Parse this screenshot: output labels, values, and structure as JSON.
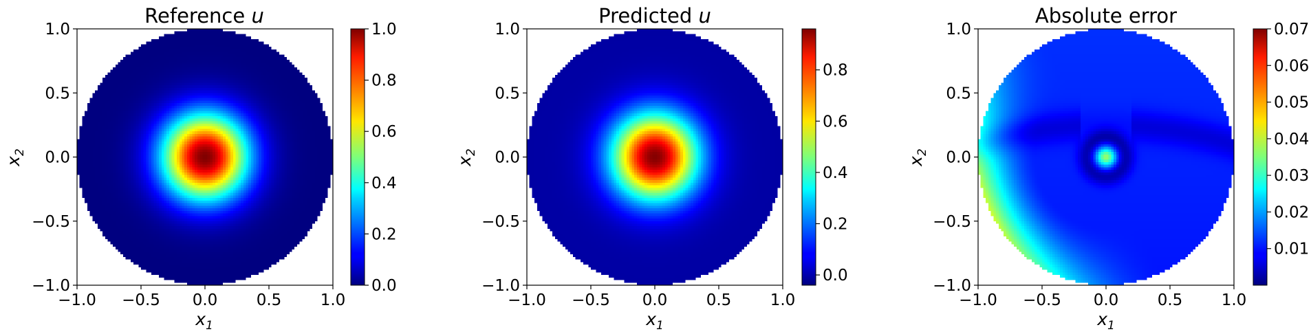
{
  "chart_data": [
    {
      "type": "heatmap",
      "title": "Reference u",
      "title_prefix": "Reference ",
      "title_var": "u",
      "xlabel": "x₁",
      "ylabel": "x₂",
      "xlim": [
        -1.0,
        1.0
      ],
      "ylim": [
        -1.0,
        1.0
      ],
      "x_ticks": [
        "−1.0",
        "−0.5",
        "0.0",
        "0.5",
        "1.0"
      ],
      "y_ticks": [
        "−1.0",
        "−0.5",
        "0.0",
        "0.5",
        "1.0"
      ],
      "domain": "unit disk",
      "field": "gaussian bump centered at (0,0), peak 1.0 at center decaying to ~0 at radius 1",
      "colormap": "jet",
      "colorbar": {
        "min": 0.0,
        "max": 1.0,
        "ticks": [
          0.0,
          0.2,
          0.4,
          0.6,
          0.8,
          1.0
        ],
        "tick_labels": [
          "0.0",
          "0.2",
          "0.4",
          "0.6",
          "0.8",
          "1.0"
        ]
      }
    },
    {
      "type": "heatmap",
      "title": "Predicted u",
      "title_prefix": "Predicted ",
      "title_var": "u",
      "xlabel": "x₁",
      "ylabel": "x₂",
      "xlim": [
        -1.0,
        1.0
      ],
      "ylim": [
        -1.0,
        1.0
      ],
      "x_ticks": [
        "−1.0",
        "−0.5",
        "0.0",
        "0.5",
        "1.0"
      ],
      "y_ticks": [
        "−1.0",
        "−0.5",
        "0.0",
        "0.5",
        "1.0"
      ],
      "domain": "unit disk",
      "field": "gaussian bump centered at (0,0), peak ~0.95 at center decaying to ~0 at radius 1",
      "colormap": "jet",
      "colorbar": {
        "min": -0.04,
        "max": 0.96,
        "ticks": [
          0.0,
          0.2,
          0.4,
          0.6,
          0.8
        ],
        "tick_labels": [
          "0.0",
          "0.2",
          "0.4",
          "0.6",
          "0.8"
        ]
      }
    },
    {
      "type": "heatmap",
      "title": "Absolute error",
      "title_prefix": "Absolute error",
      "title_var": "",
      "xlabel": "x₁",
      "ylabel": "x₂",
      "xlim": [
        -1.0,
        1.0
      ],
      "ylim": [
        -1.0,
        1.0
      ],
      "x_ticks": [
        "−1.0",
        "−0.5",
        "0.0",
        "0.5",
        "1.0"
      ],
      "y_ticks": [
        "−1.0",
        "−0.5",
        "0.0",
        "0.5",
        "1.0"
      ],
      "domain": "unit disk",
      "field": "error ~0.01 background, peak ~0.035 spot at center with dark ring, up to ~0.04 near left-bottom boundary",
      "colormap": "jet",
      "colorbar": {
        "min": 0.0,
        "max": 0.07,
        "ticks": [
          0.01,
          0.02,
          0.03,
          0.04,
          0.05,
          0.06,
          0.07
        ],
        "tick_labels": [
          "0.01",
          "0.02",
          "0.03",
          "0.04",
          "0.05",
          "0.06",
          "0.07"
        ]
      }
    }
  ]
}
